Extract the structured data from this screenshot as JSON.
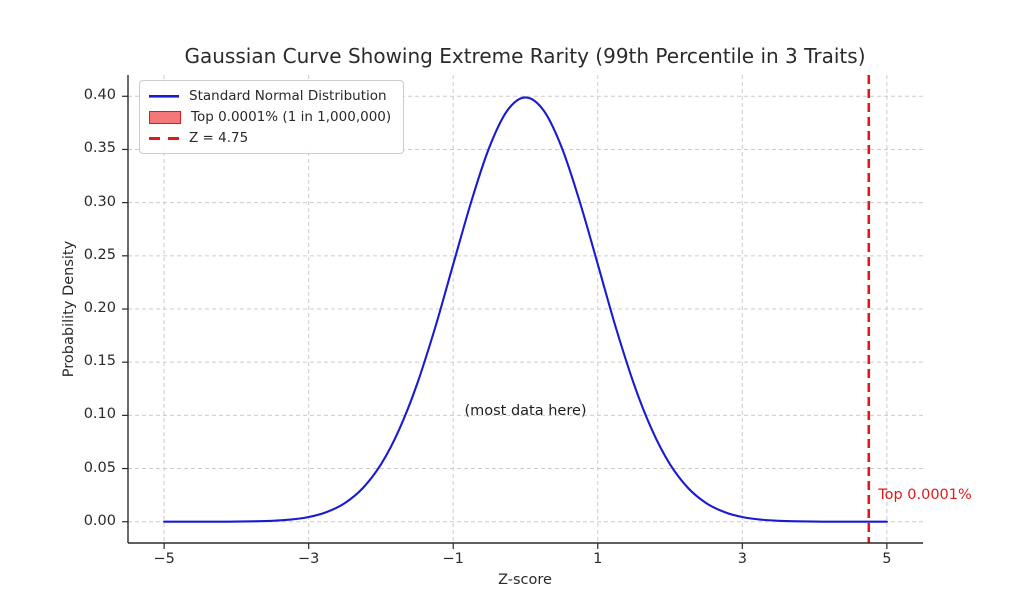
{
  "figure": {
    "background_color": "#ffffff",
    "text_color": "#2a2a2a"
  },
  "chart_data": {
    "type": "line",
    "title": "Gaussian Curve Showing Extreme Rarity (99th Percentile in 3 Traits)",
    "xlabel": "Z-score",
    "ylabel": "Probability Density",
    "xlim": [
      -5.5,
      5.5
    ],
    "ylim": [
      -0.02,
      0.42
    ],
    "grid": {
      "show": true,
      "line_style": "dashed",
      "color": "#cccccc"
    },
    "x_ticks": {
      "values": [
        -5,
        -3,
        -1,
        1,
        3,
        5
      ],
      "labels": [
        "−5",
        "−3",
        "−1",
        "1",
        "3",
        "5"
      ]
    },
    "y_ticks": {
      "values": [
        0,
        0.05,
        0.1,
        0.15,
        0.2,
        0.25,
        0.3,
        0.35,
        0.4
      ],
      "labels": [
        "0.00",
        "0.05",
        "0.10",
        "0.15",
        "0.20",
        "0.25",
        "0.30",
        "0.35",
        "0.40"
      ]
    },
    "series": [
      {
        "name": "Standard Normal Distribution",
        "color": "#1a1ad1",
        "line_width": 2.1,
        "distribution": {
          "type": "gaussian",
          "mean": 0,
          "std": 1,
          "peak_density": 0.3989
        },
        "x_range": [
          -5,
          5
        ],
        "points": [
          [
            -5,
            0.0
          ],
          [
            -4.75,
            0.0
          ],
          [
            -4.5,
            0.0
          ],
          [
            -4.25,
            0.0
          ],
          [
            -4,
            0.0001
          ],
          [
            -3.75,
            0.0004
          ],
          [
            -3.5,
            0.0009
          ],
          [
            -3.25,
            0.002
          ],
          [
            -3,
            0.0044
          ],
          [
            -2.75,
            0.0091
          ],
          [
            -2.5,
            0.0175
          ],
          [
            -2.25,
            0.0317
          ],
          [
            -2,
            0.054
          ],
          [
            -1.75,
            0.0863
          ],
          [
            -1.5,
            0.1295
          ],
          [
            -1.25,
            0.1826
          ],
          [
            -1,
            0.242
          ],
          [
            -0.75,
            0.3011
          ],
          [
            -0.5,
            0.3521
          ],
          [
            -0.25,
            0.3867
          ],
          [
            0,
            0.3989
          ],
          [
            0.25,
            0.3867
          ],
          [
            0.5,
            0.3521
          ],
          [
            0.75,
            0.3011
          ],
          [
            1,
            0.242
          ],
          [
            1.25,
            0.1826
          ],
          [
            1.5,
            0.1295
          ],
          [
            1.75,
            0.0863
          ],
          [
            2,
            0.054
          ],
          [
            2.25,
            0.0317
          ],
          [
            2.5,
            0.0175
          ],
          [
            2.75,
            0.0091
          ],
          [
            3,
            0.0044
          ],
          [
            3.25,
            0.002
          ],
          [
            3.5,
            0.0009
          ],
          [
            3.75,
            0.0004
          ],
          [
            4,
            0.0001
          ],
          [
            4.25,
            0.0
          ],
          [
            4.5,
            0.0
          ],
          [
            4.75,
            0.0
          ],
          [
            5,
            0.0
          ]
        ]
      }
    ],
    "vline": {
      "x": 4.75,
      "label": "Z = 4.75",
      "color": "#e01a1b",
      "style": "dashed",
      "width": 2.6
    },
    "shaded_region": {
      "x_from": 4.75,
      "x_to": 5,
      "fill_color": "#f47878",
      "edge_color": "#e01a1b",
      "label": "Top 0.0001% (1 in 1,000,000)"
    },
    "legend": {
      "position": "upper left",
      "entries": [
        {
          "swatch": "line",
          "color": "#1a1ad1",
          "label": "Standard Normal Distribution"
        },
        {
          "swatch": "patch",
          "fill": "#f47878",
          "edge": "#e01a1b",
          "label": "Top 0.0001% (1 in 1,000,000)"
        },
        {
          "swatch": "dashed-line",
          "color": "#e01a1b",
          "label": "Z = 4.75"
        }
      ]
    },
    "annotations": [
      {
        "text": "(most data here)",
        "x": 0,
        "y": 0.104,
        "anchor": "middle",
        "color": "#1f1f1f"
      },
      {
        "text": "Top 0.0001%",
        "x": 4.88,
        "y": 0.025,
        "anchor": "start",
        "color": "#e01a1b"
      }
    ]
  }
}
